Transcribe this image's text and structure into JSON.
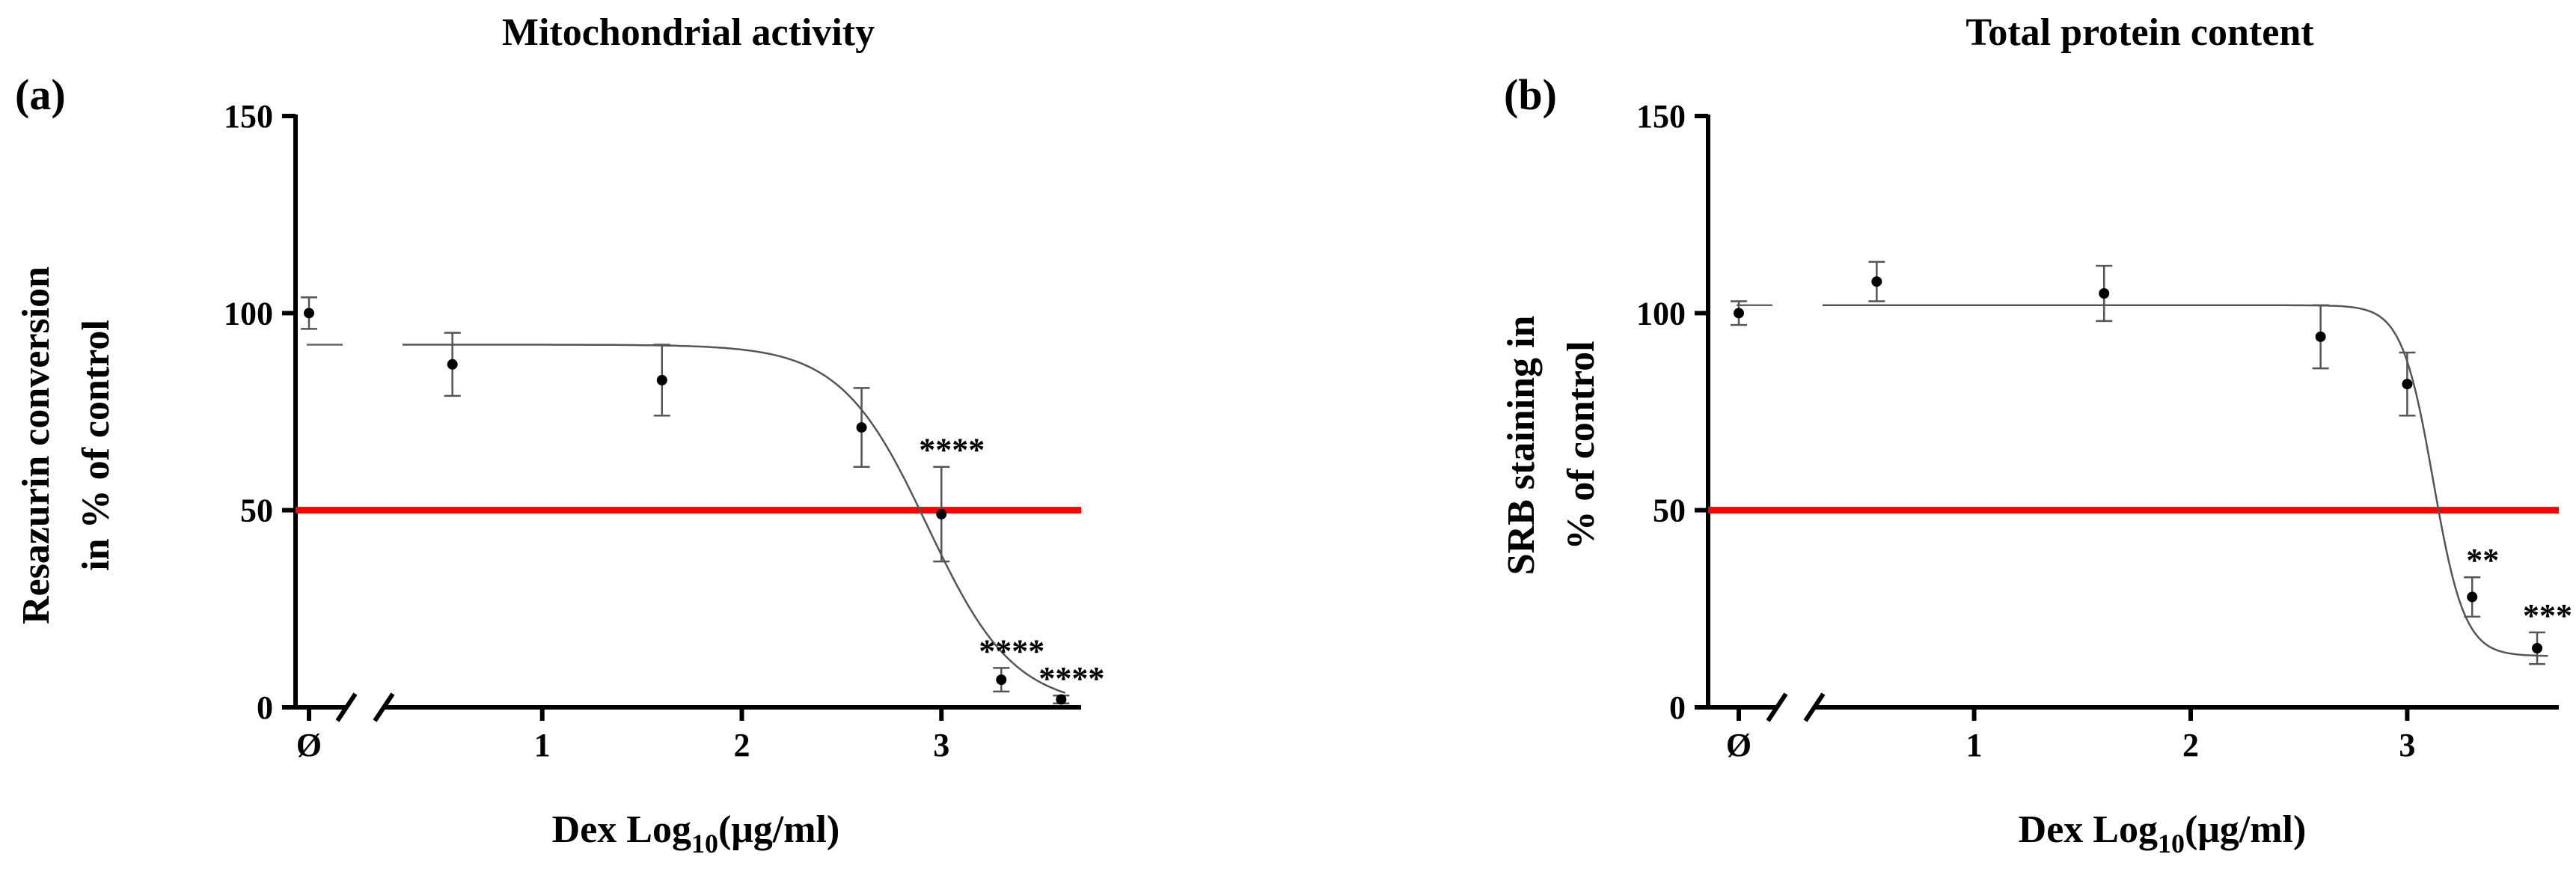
{
  "chart_data": [
    {
      "type": "scatter",
      "panel_label": "(a)",
      "title": "Mitochondrial activity",
      "ylabel_lines": [
        "Resazurin conversion",
        "in % of control"
      ],
      "xlabel": {
        "base": "Dex Log",
        "sub": "10",
        "unit": "(μg/ml)"
      },
      "ylim": [
        0,
        150
      ],
      "yticks": [
        0,
        50,
        100,
        150
      ],
      "xlim": [
        0.3,
        3.7
      ],
      "xticks": [
        {
          "value": 1,
          "label": "1"
        },
        {
          "value": 2,
          "label": "2"
        },
        {
          "value": 3,
          "label": "3"
        }
      ],
      "control_label": "Ø",
      "control_point": {
        "y": 100,
        "err": 4,
        "sig": ""
      },
      "points": [
        {
          "x": 0.55,
          "y": 87,
          "err": 8,
          "sig": ""
        },
        {
          "x": 1.6,
          "y": 83,
          "err": 9,
          "sig": ""
        },
        {
          "x": 2.6,
          "y": 71,
          "err": 10,
          "sig": ""
        },
        {
          "x": 3.0,
          "y": 49,
          "err": 12,
          "sig": "****"
        },
        {
          "x": 3.3,
          "y": 7,
          "err": 3,
          "sig": "****"
        },
        {
          "x": 3.6,
          "y": 2,
          "err": 1,
          "sig": "****"
        }
      ],
      "fit": {
        "top": 92,
        "bottom": 0,
        "logIC50": 2.93,
        "hill": 2.0,
        "x_start": 0.3,
        "x_end": 3.62
      },
      "control_reference_y": 92,
      "reference_line": {
        "y": 50,
        "color": "#ff0000"
      }
    },
    {
      "type": "scatter",
      "panel_label": "(b)",
      "title": "Total protein content",
      "ylabel_lines": [
        "SRB staining in",
        "% of control"
      ],
      "xlabel": {
        "base": "Dex Log",
        "sub": "10",
        "unit": "(μg/ml)"
      },
      "ylim": [
        0,
        150
      ],
      "yticks": [
        0,
        50,
        100,
        150
      ],
      "xlim": [
        0.3,
        3.7
      ],
      "xticks": [
        {
          "value": 1,
          "label": "1"
        },
        {
          "value": 2,
          "label": "2"
        },
        {
          "value": 3,
          "label": "3"
        }
      ],
      "control_label": "Ø",
      "control_point": {
        "y": 100,
        "err": 3,
        "sig": ""
      },
      "points": [
        {
          "x": 0.55,
          "y": 108,
          "err": 5,
          "sig": ""
        },
        {
          "x": 1.6,
          "y": 105,
          "err": 7,
          "sig": ""
        },
        {
          "x": 2.6,
          "y": 94,
          "err": 8,
          "sig": ""
        },
        {
          "x": 3.0,
          "y": 82,
          "err": 8,
          "sig": ""
        },
        {
          "x": 3.3,
          "y": 28,
          "err": 5,
          "sig": "**"
        },
        {
          "x": 3.6,
          "y": 15,
          "err": 4,
          "sig": "***"
        }
      ],
      "fit": {
        "top": 102,
        "bottom": 13,
        "logIC50": 3.12,
        "hill": 6.0,
        "x_start": 0.3,
        "x_end": 3.65
      },
      "control_reference_y": 102,
      "reference_line": {
        "y": 50,
        "color": "#ff0000"
      }
    }
  ]
}
